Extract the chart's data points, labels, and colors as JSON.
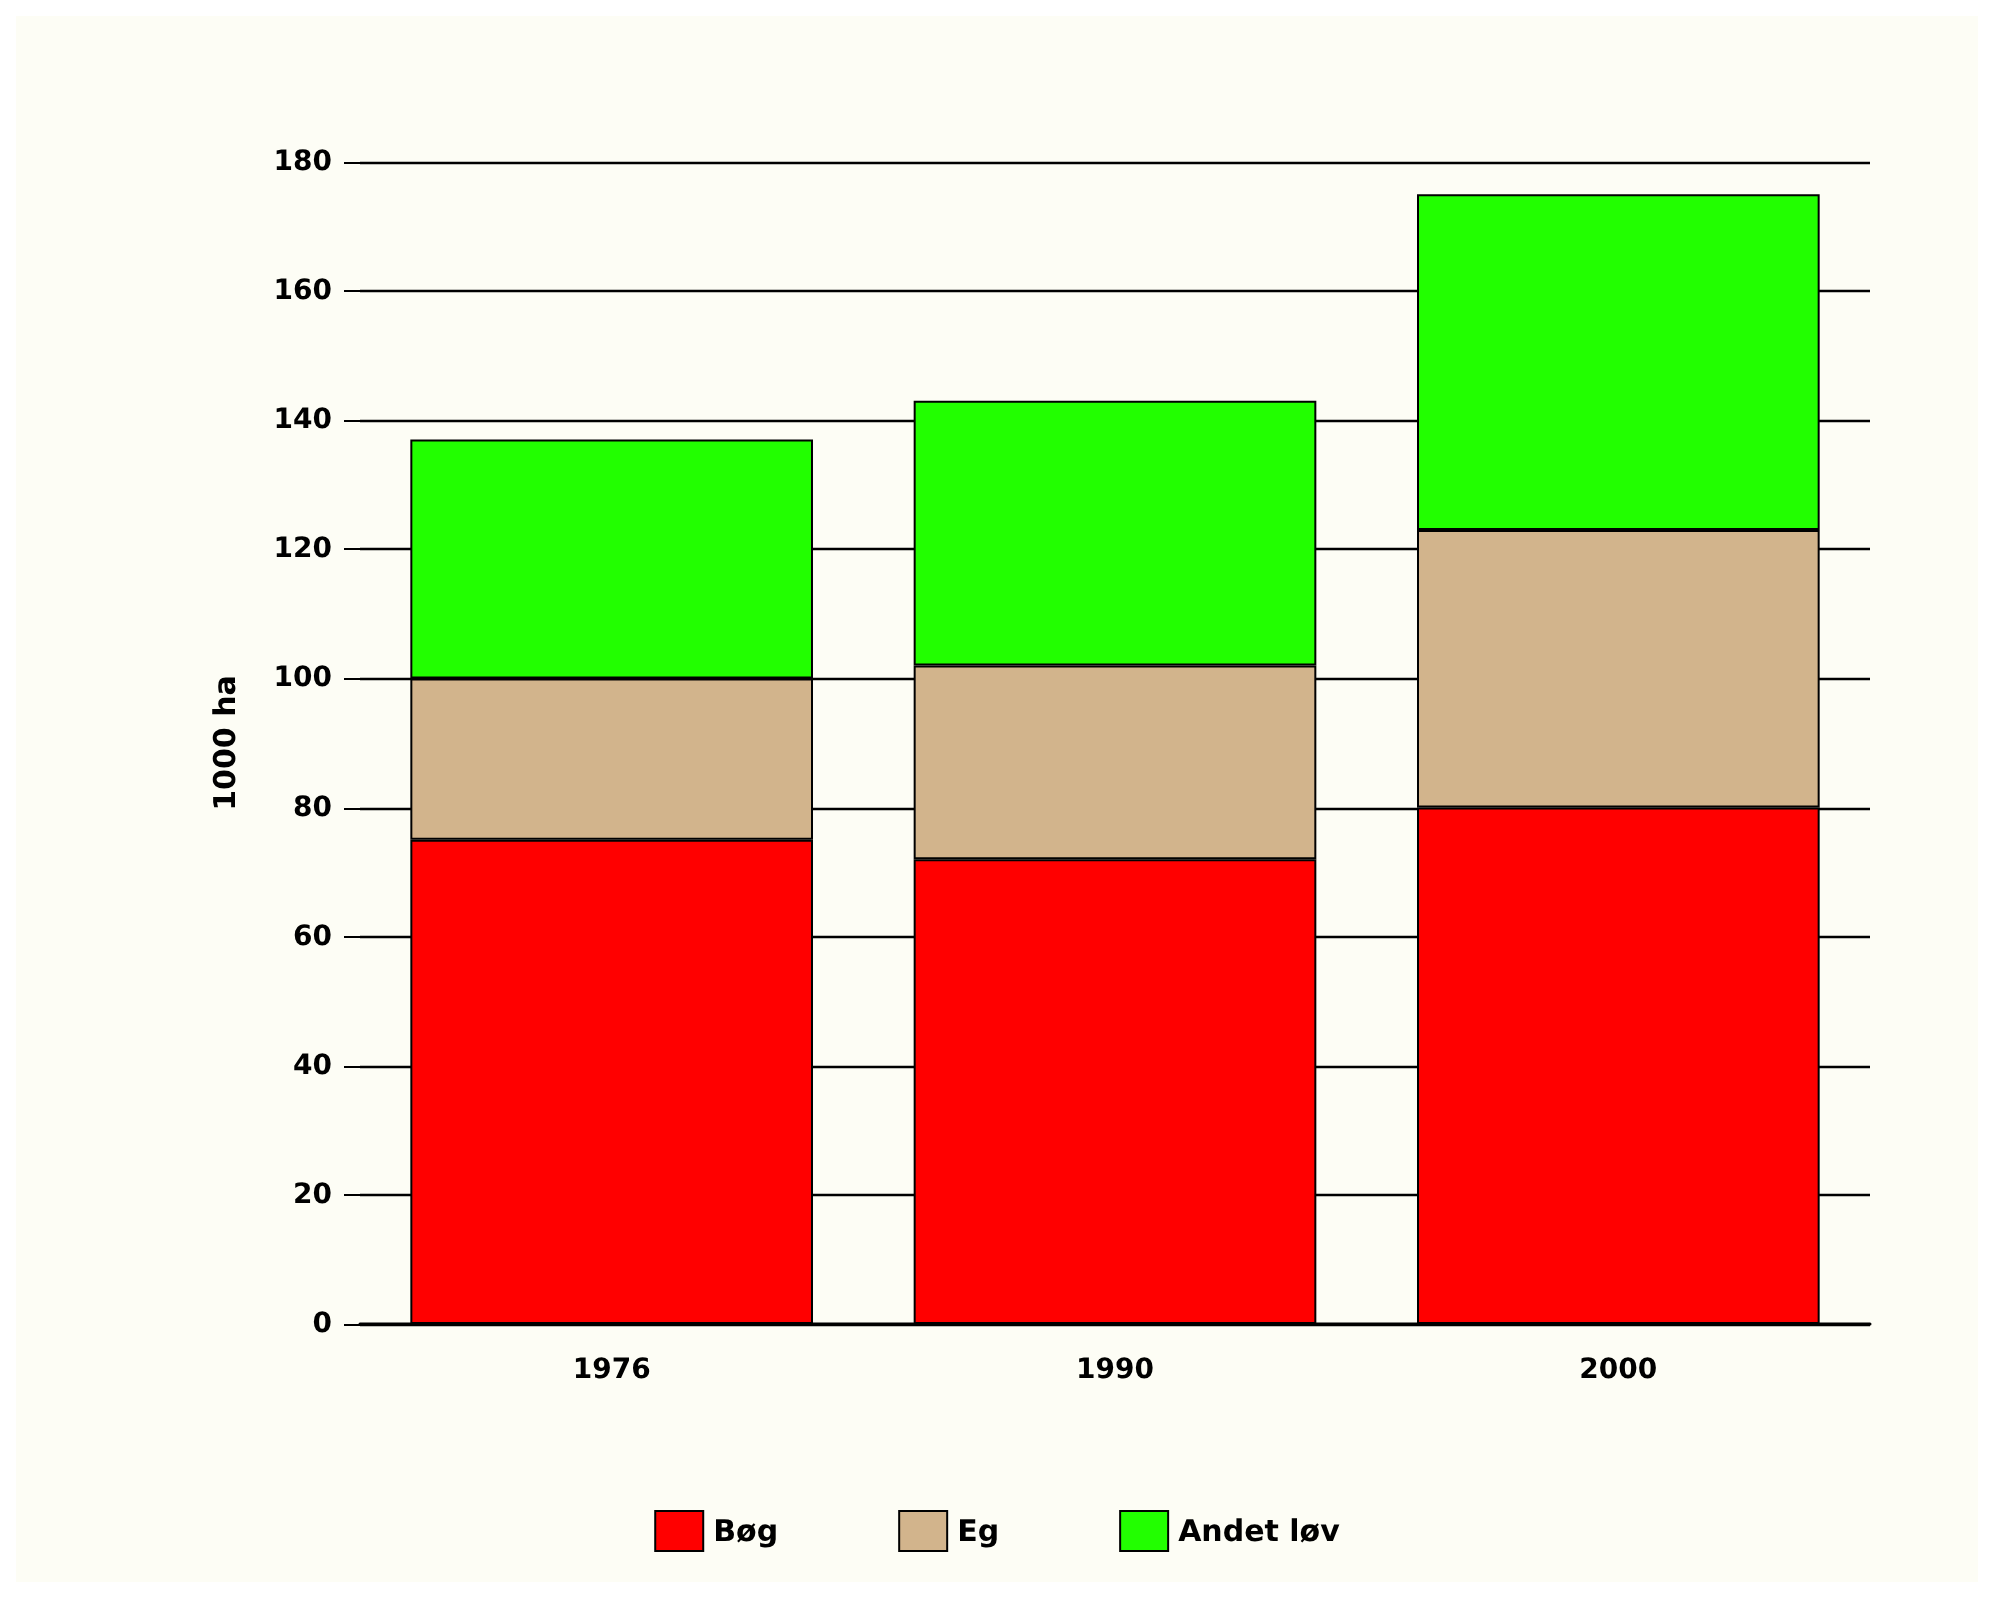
{
  "chart_data": {
    "type": "bar",
    "stacked": true,
    "ylabel": "1000 ha",
    "categories": [
      "1976",
      "1990",
      "2000"
    ],
    "series": [
      {
        "name": "Bøg",
        "color": "#ff0000",
        "values": [
          75,
          72,
          80
        ]
      },
      {
        "name": "Eg",
        "color": "#d2b48c",
        "values": [
          25,
          30,
          43
        ]
      },
      {
        "name": "Andet løv",
        "color": "#22ff00",
        "values": [
          37,
          41,
          52
        ]
      }
    ],
    "ylim": [
      0,
      180
    ],
    "yticks": [
      0,
      20,
      40,
      60,
      80,
      100,
      120,
      140,
      160,
      180
    ],
    "grid": "y",
    "legend": "bottom"
  }
}
